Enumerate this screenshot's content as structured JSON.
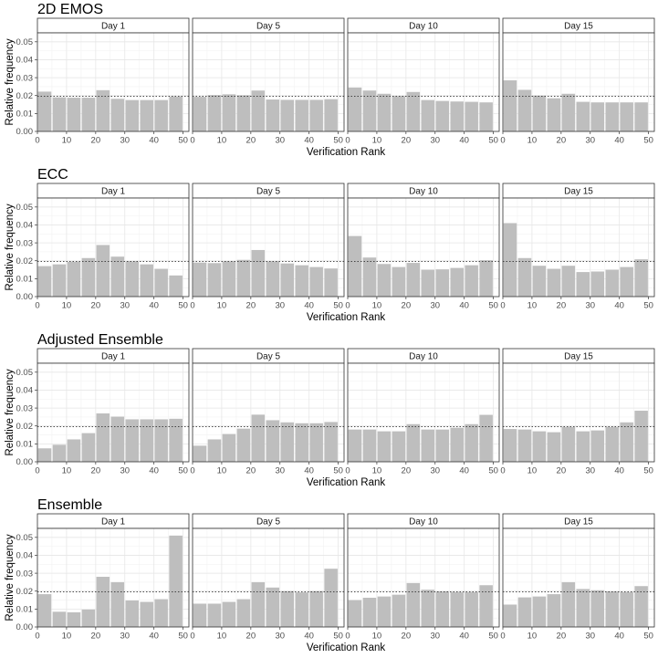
{
  "chart_data": {
    "type": "bar",
    "ylabel": "Relative frequency",
    "xlabel": "Verification Rank",
    "bar_color": "#bebebe",
    "reference_line": 0.0196,
    "ylim": [
      0,
      0.055
    ],
    "yticks": [
      0.0,
      0.01,
      0.02,
      0.03,
      0.04,
      0.05
    ],
    "ytick_labels": [
      "0.00",
      "0.01",
      "0.02",
      "0.03",
      "0.04",
      "0.05"
    ],
    "xlim": [
      0,
      52
    ],
    "xticks": [
      0,
      10,
      20,
      30,
      40,
      50
    ],
    "xtick_labels": [
      "0",
      "10",
      "20",
      "30",
      "40",
      "50"
    ],
    "bin_centers": [
      2.5,
      7.5,
      12.5,
      17.5,
      22.5,
      27.5,
      32.5,
      37.5,
      42.5,
      47.5
    ],
    "panels": [
      "Day 1",
      "Day 5",
      "Day 10",
      "Day 15"
    ],
    "methods": [
      {
        "title": "2D EMOS",
        "series": [
          {
            "name": "Day 1",
            "values": [
              0.0222,
              0.019,
              0.0188,
              0.0188,
              0.023,
              0.0182,
              0.0175,
              0.0175,
              0.0175,
              0.0195
            ]
          },
          {
            "name": "Day 5",
            "values": [
              0.0193,
              0.0203,
              0.0207,
              0.0202,
              0.0228,
              0.0178,
              0.0176,
              0.0176,
              0.0176,
              0.018
            ]
          },
          {
            "name": "Day 10",
            "values": [
              0.0245,
              0.0228,
              0.021,
              0.0197,
              0.022,
              0.0175,
              0.017,
              0.0167,
              0.0165,
              0.0162
            ]
          },
          {
            "name": "Day 15",
            "values": [
              0.0285,
              0.0232,
              0.02,
              0.0185,
              0.021,
              0.0165,
              0.0162,
              0.0162,
              0.0162,
              0.0162
            ]
          }
        ]
      },
      {
        "title": "ECC",
        "series": [
          {
            "name": "Day 1",
            "values": [
              0.017,
              0.018,
              0.0195,
              0.0215,
              0.0288,
              0.0223,
              0.0197,
              0.018,
              0.0155,
              0.0118
            ]
          },
          {
            "name": "Day 5",
            "values": [
              0.019,
              0.0187,
              0.0197,
              0.0205,
              0.026,
              0.0197,
              0.0185,
              0.0175,
              0.0165,
              0.0157
            ]
          },
          {
            "name": "Day 10",
            "values": [
              0.0338,
              0.0218,
              0.0182,
              0.0165,
              0.0188,
              0.015,
              0.0152,
              0.016,
              0.0175,
              0.0203
            ]
          },
          {
            "name": "Day 15",
            "values": [
              0.041,
              0.0215,
              0.0172,
              0.0155,
              0.0172,
              0.0137,
              0.014,
              0.015,
              0.0165,
              0.0208
            ]
          }
        ]
      },
      {
        "title": "Adjusted Ensemble",
        "series": [
          {
            "name": "Day 1",
            "values": [
              0.0075,
              0.0095,
              0.0125,
              0.016,
              0.027,
              0.0252,
              0.0237,
              0.0237,
              0.0237,
              0.024
            ]
          },
          {
            "name": "Day 5",
            "values": [
              0.009,
              0.0125,
              0.0155,
              0.0185,
              0.0263,
              0.0232,
              0.022,
              0.0215,
              0.0215,
              0.0222
            ]
          },
          {
            "name": "Day 10",
            "values": [
              0.018,
              0.018,
              0.017,
              0.017,
              0.021,
              0.018,
              0.018,
              0.019,
              0.021,
              0.0262
            ]
          },
          {
            "name": "Day 15",
            "values": [
              0.0183,
              0.018,
              0.017,
              0.0165,
              0.0195,
              0.017,
              0.0175,
              0.0195,
              0.022,
              0.0285
            ]
          }
        ]
      },
      {
        "title": "Ensemble",
        "series": [
          {
            "name": "Day 1",
            "values": [
              0.0183,
              0.0085,
              0.0082,
              0.0097,
              0.028,
              0.025,
              0.0148,
              0.014,
              0.0155,
              0.051
            ]
          },
          {
            "name": "Day 5",
            "values": [
              0.013,
              0.013,
              0.014,
              0.0155,
              0.025,
              0.022,
              0.02,
              0.0193,
              0.02,
              0.0325
            ]
          },
          {
            "name": "Day 10",
            "values": [
              0.015,
              0.0163,
              0.017,
              0.018,
              0.0245,
              0.0208,
              0.0198,
              0.0195,
              0.0195,
              0.0233
            ]
          },
          {
            "name": "Day 15",
            "values": [
              0.0125,
              0.0165,
              0.017,
              0.0183,
              0.025,
              0.0212,
              0.0205,
              0.0198,
              0.0195,
              0.0228
            ]
          }
        ]
      }
    ]
  }
}
